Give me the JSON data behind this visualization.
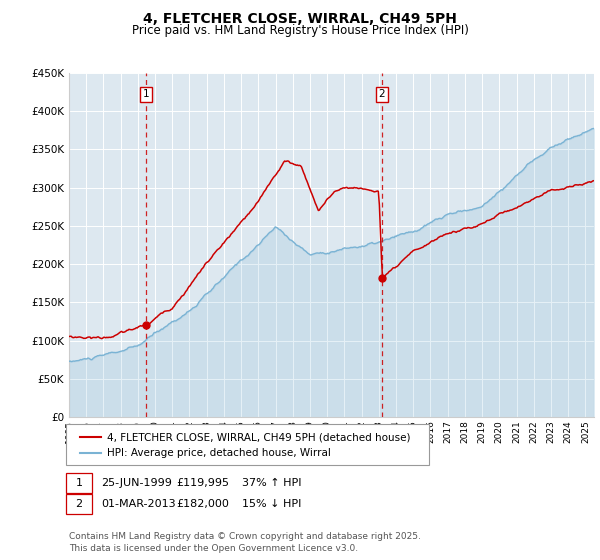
{
  "title": "4, FLETCHER CLOSE, WIRRAL, CH49 5PH",
  "subtitle": "Price paid vs. HM Land Registry's House Price Index (HPI)",
  "ylim": [
    0,
    450000
  ],
  "yticks": [
    0,
    50000,
    100000,
    150000,
    200000,
    250000,
    300000,
    350000,
    400000,
    450000
  ],
  "ytick_labels": [
    "£0",
    "£50K",
    "£100K",
    "£150K",
    "£200K",
    "£250K",
    "£300K",
    "£350K",
    "£400K",
    "£450K"
  ],
  "hpi_color": "#7ab3d4",
  "price_color": "#cc0000",
  "vline_color": "#cc0000",
  "plot_bg_color": "#dde8f0",
  "marker1_date": 1999.49,
  "marker2_date": 2013.16,
  "marker1_price": 119995,
  "marker2_price": 182000,
  "legend_line1": "4, FLETCHER CLOSE, WIRRAL, CH49 5PH (detached house)",
  "legend_line2": "HPI: Average price, detached house, Wirral",
  "table_row1_num": "1",
  "table_row1_date": "25-JUN-1999",
  "table_row1_price": "£119,995",
  "table_row1_hpi": "37% ↑ HPI",
  "table_row2_num": "2",
  "table_row2_date": "01-MAR-2013",
  "table_row2_price": "£182,000",
  "table_row2_hpi": "15% ↓ HPI",
  "footer": "Contains HM Land Registry data © Crown copyright and database right 2025.\nThis data is licensed under the Open Government Licence v3.0."
}
